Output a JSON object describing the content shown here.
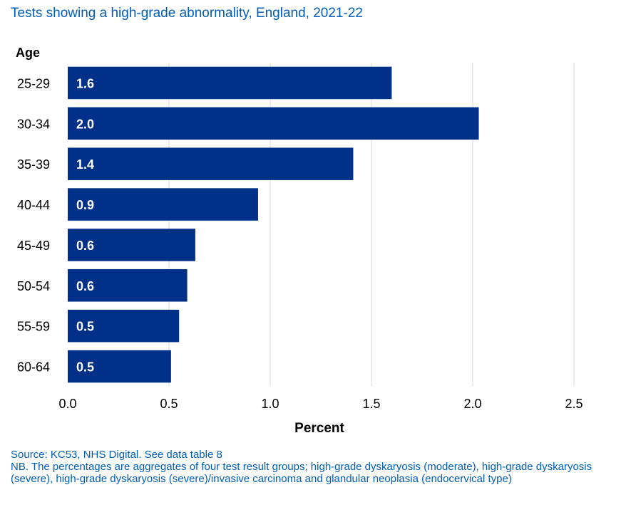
{
  "title": "Tests showing a high-grade abnormality, England, 2021-22",
  "notes": {
    "source": "Source: KC53, NHS Digital. See data table 8",
    "nb": "NB. The percentages are aggregates of four test result groups; high-grade dyskaryosis (moderate), high-grade dyskaryosis (severe), high-grade dyskaryosis (severe)/invasive carcinoma and glandular neoplasia (endocervical type)"
  },
  "colors": {
    "bar": "#003087",
    "title": "#005EB8",
    "grid": "#D9D9D9"
  },
  "chart_data": {
    "type": "bar",
    "orientation": "horizontal",
    "title": "Tests showing a high-grade abnormality, England, 2021-22",
    "ylabel": "Age",
    "xlabel": "Percent",
    "categories": [
      "25-29",
      "30-34",
      "35-39",
      "40-44",
      "45-49",
      "50-54",
      "55-59",
      "60-64"
    ],
    "values": [
      1.6,
      2.03,
      1.41,
      0.94,
      0.63,
      0.59,
      0.55,
      0.51
    ],
    "data_labels": [
      "1.6",
      "2.0",
      "1.4",
      "0.9",
      "0.6",
      "0.6",
      "0.5",
      "0.5"
    ],
    "xlim": [
      0,
      2.5
    ],
    "xticks": [
      "0.0",
      "0.5",
      "1.0",
      "1.5",
      "2.0",
      "2.5"
    ],
    "grid": true
  }
}
